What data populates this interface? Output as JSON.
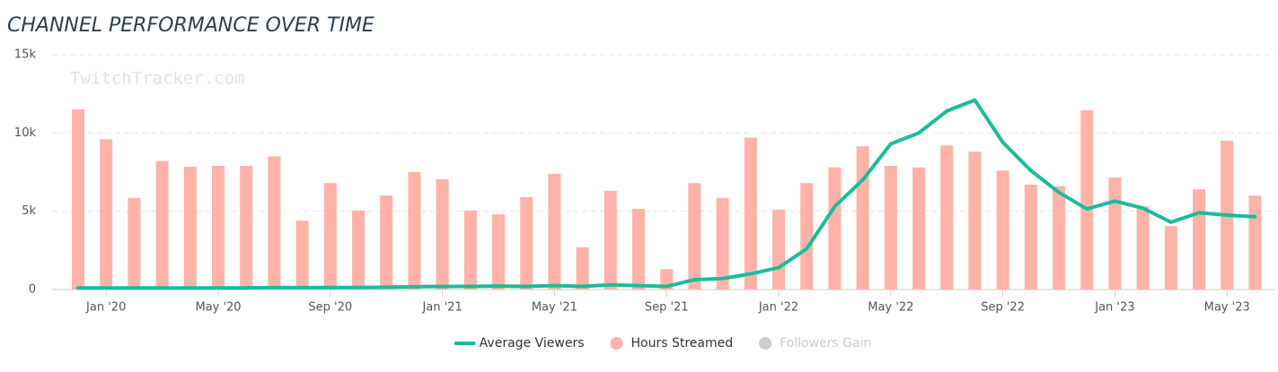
{
  "chart_data": {
    "type": "combo",
    "title": "CHANNEL PERFORMANCE OVER TIME",
    "watermark": "TwitchTracker.com",
    "categories": [
      null,
      "Jan '20",
      null,
      null,
      null,
      "May '20",
      null,
      null,
      null,
      "Sep '20",
      null,
      null,
      null,
      "Jan '21",
      null,
      null,
      null,
      "May '21",
      null,
      null,
      null,
      "Sep '21",
      null,
      null,
      null,
      "Jan '22",
      null,
      null,
      null,
      "May '22",
      null,
      null,
      null,
      "Sep '22",
      null,
      null,
      null,
      "Jan '23",
      null,
      null,
      null,
      "May '23",
      null
    ],
    "series": [
      {
        "name": "Average Viewers",
        "type": "line",
        "color": "#1abc9c",
        "values": [
          100,
          100,
          100,
          100,
          100,
          100,
          110,
          120,
          120,
          130,
          130,
          150,
          180,
          200,
          200,
          220,
          200,
          250,
          200,
          300,
          250,
          200,
          630,
          700,
          1000,
          1400,
          2600,
          5300,
          7000,
          9300,
          10000,
          11400,
          12100,
          9400,
          7600,
          6200,
          5150,
          5650,
          5200,
          4300,
          4900,
          4750,
          4650
        ]
      },
      {
        "name": "Hours Streamed",
        "type": "bar",
        "color": "#ffb2a8",
        "values": [
          11500,
          9600,
          5850,
          8200,
          7850,
          7900,
          7900,
          8500,
          4400,
          6800,
          5050,
          6000,
          7500,
          7050,
          5050,
          4800,
          5900,
          7400,
          2700,
          6300,
          5150,
          1300,
          6800,
          5850,
          9700,
          5100,
          6800,
          7800,
          9150,
          7900,
          7800,
          9200,
          8800,
          7600,
          6700,
          6600,
          11450,
          7150,
          5300,
          4050,
          6400,
          9500,
          6000
        ]
      },
      {
        "name": "Followers Gain",
        "type": "bar",
        "color": "#cccccc",
        "visible": false
      }
    ],
    "ylim": [
      0,
      15000
    ],
    "yticks": [
      {
        "value": 0,
        "label": "0"
      },
      {
        "value": 5000,
        "label": "5k"
      },
      {
        "value": 10000,
        "label": "10k"
      },
      {
        "value": 15000,
        "label": "15k"
      }
    ],
    "grid": true
  }
}
